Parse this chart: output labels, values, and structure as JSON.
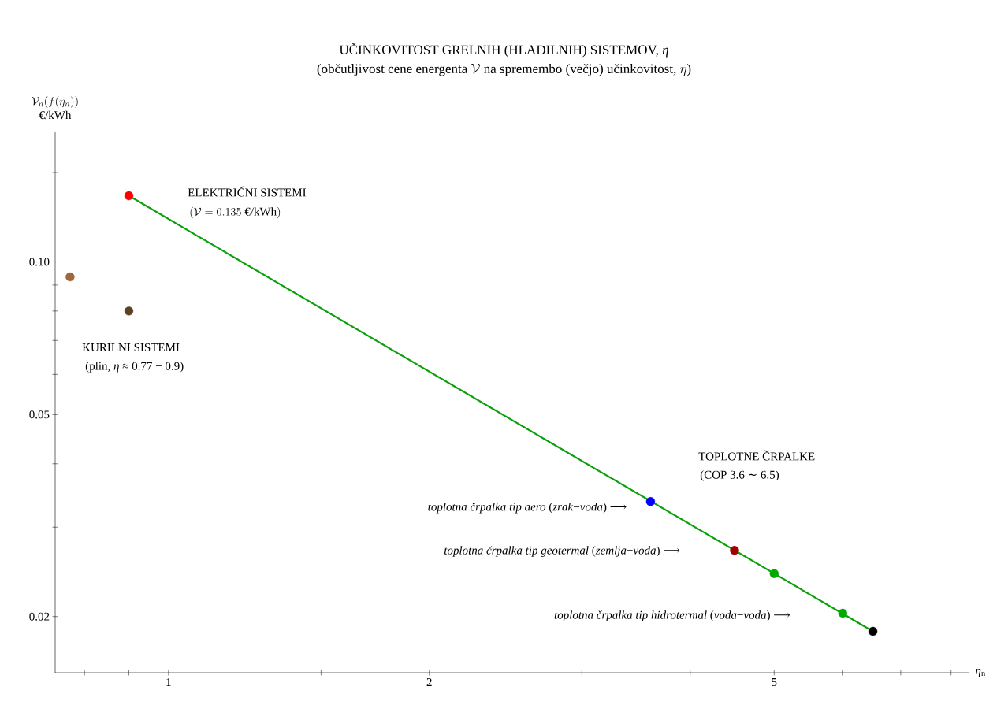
{
  "chart_data": {
    "type": "scatter",
    "title": "UČINKOVITOST GRELNIH (HLADILNIH) SISTEMOV, *η*",
    "subtitle": "\\text{(občutljivost cene energenta }\\mathcal{V}\\text{ na spremembo (večjo) učinkovitost, }\\eta\\text{)}",
    "xlabel": "*η*$_{n}$",
    "ylabel": "\\begin{array}{c}\\mathcal{V}_n(f(\\eta_n))\\\\ \\text{€/kWh}\\end{array}",
    "log": "xy",
    "xlim": [
      0.74,
      8.4
    ],
    "ylim": [
      0.0155,
      0.18
    ],
    "xticks": [
      {
        "value": 0.8,
        "label": null
      },
      {
        "value": 0.9,
        "label": null
      },
      1,
      {
        "value": 1.5,
        "label": null
      },
      2,
      {
        "value": 3,
        "label": null
      },
      {
        "value": 4,
        "label": null
      },
      5,
      {
        "value": 6,
        "label": null
      },
      {
        "value": 7,
        "label": null
      },
      {
        "value": 8,
        "label": null
      }
    ],
    "yticks": [
      0.02,
      {
        "value": 0.03,
        "label": null
      },
      {
        "value": 0.04,
        "label": null
      },
      0.05,
      {
        "value": 0.06,
        "label": null
      },
      {
        "value": 0.07,
        "label": null
      },
      {
        "value": 0.08,
        "label": null
      },
      {
        "value": 0.09,
        "label": null
      },
      {
        "value": 0.1,
        "label": "0.10"
      },
      {
        "value": 0.15,
        "label": null
      }
    ],
    "grid": false,
    "series": [
      {
        "type": "line",
        "color": "#0aa00a",
        "x": [
          0.9,
          6.5
        ],
        "values": [
          0.135,
          0.0187
        ]
      },
      {
        "marker": "circle",
        "x": [
          0.77,
          0.9,
          0.9,
          3.6,
          4.5,
          5,
          6,
          6.5
        ],
        "values": [
          0.0934,
          0.08,
          0.135,
          0.0337,
          0.027,
          0.0243,
          0.0203,
          0.0187
        ],
        "colors": [
          "#a0683a",
          "#5e4023",
          "#ff0000",
          "#0000ff",
          "#a00000",
          "#00aa00",
          "#00aa00",
          "#000000"
        ]
      }
    ],
    "annotations": [
      "ELEKTRIČNI SISTEMI",
      "(\\mathcal{V} = 0.135\\ \\text{€/kWh})",
      "KURILNI SISTEMI",
      "(plin, *η* ≈ 0.77 − 0.9)",
      "TOPLOTNE ČRPALKE",
      "(COP 3.6 ∼ 6.5)",
      {
        "text": "*toplotna črpalka tip aero* (*zrak*−*voda*) ⟶",
        "x": 3.6,
        "y": 0.0337
      },
      "*toplotna črpalka tip geotermal* (*zemlja*−*voda*) ⟶",
      "*toplotna črpalka tip hidrotermal* (*voda*−*voda*) ⟶"
    ]
  }
}
